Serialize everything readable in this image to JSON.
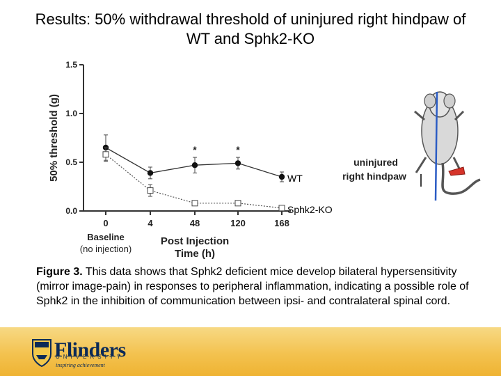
{
  "slide": {
    "title": "Results: 50% withdrawal threshold of uninjured right hindpaw of WT and Sphk2-KO"
  },
  "chart_data": {
    "type": "line",
    "title": "",
    "ylabel": "50% threshold (g)",
    "xlabel": "Post Injection\nTime (h)",
    "ylim": [
      0,
      1.5
    ],
    "yticks": [
      "0.0",
      "0.5",
      "1.0",
      "1.5"
    ],
    "categories": [
      "0",
      "4",
      "48",
      "120",
      "168"
    ],
    "baseline_label": "Baseline",
    "baseline_sub": "(no injection)",
    "series": [
      {
        "name": "WT",
        "marker": "filled-circle",
        "line": "solid",
        "values": [
          0.65,
          0.39,
          0.47,
          0.49,
          0.35
        ],
        "errors": [
          0.13,
          0.06,
          0.08,
          0.06,
          0.05
        ]
      },
      {
        "name": "Sphk2-KO",
        "marker": "open-square",
        "line": "dotted",
        "values": [
          0.58,
          0.21,
          0.08,
          0.08,
          0.03
        ],
        "errors": [
          0.07,
          0.06,
          0.02,
          0.02,
          0.01
        ]
      }
    ],
    "significance": [
      {
        "index": 2,
        "label": "*"
      },
      {
        "index": 3,
        "label": "*"
      }
    ],
    "grid": false,
    "legend": "inline at line ends"
  },
  "illustration": {
    "label_line1": "uninjured",
    "label_line2": "right hindpaw",
    "colors": {
      "line": "#2b5cc4",
      "paw": "#d6342a"
    }
  },
  "caption": {
    "bold": "Figure 3.",
    "text": " This data shows that Sphk2 deficient mice develop bilateral hypersensitivity (mirror image-pain) in responses to peripheral inflammation, indicating a possible role of Sphk2 in the inhibition of communication between ipsi- and contralateral spinal cord."
  },
  "footer": {
    "logo_name": "Flinders",
    "logo_sub": "UNIVERSITY",
    "logo_tag": "inspiring achievement"
  }
}
